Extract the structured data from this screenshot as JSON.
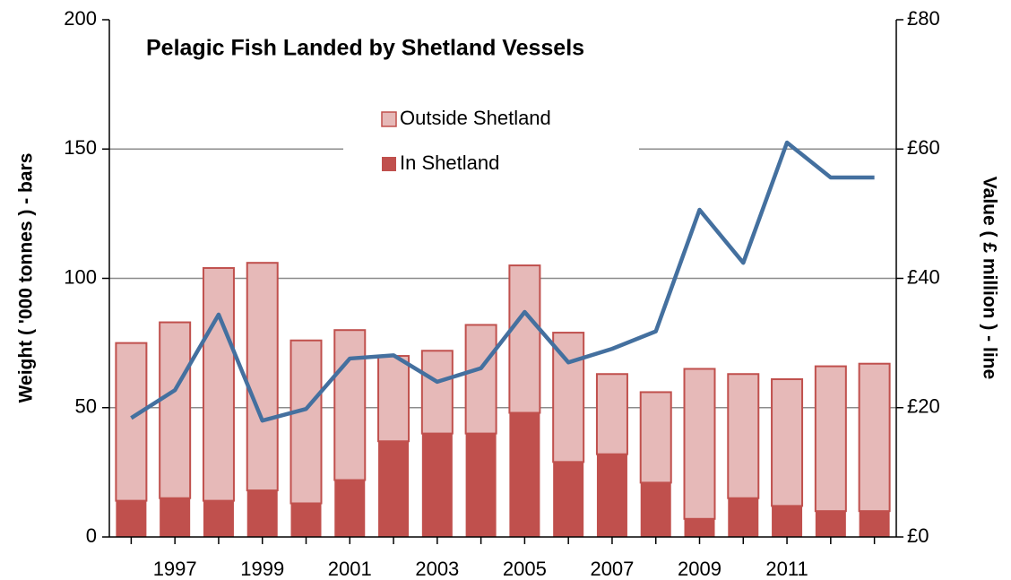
{
  "chart_data": {
    "type": "bar",
    "stacked": true,
    "title": "Pelagic Fish Landed by Shetland Vessels",
    "y_label": "Weight ( '000 tonnes ) - bars",
    "y2_label": "Value ( £ million ) - line",
    "categories": [
      null,
      "1997",
      null,
      "1999",
      null,
      "2001",
      null,
      "2003",
      null,
      "2005",
      null,
      "2007",
      null,
      "2009",
      null,
      "2011",
      null,
      null
    ],
    "series": [
      {
        "name": "In Shetland",
        "type": "bar",
        "color": "#c0504d",
        "values": [
          14,
          15,
          14,
          18,
          13,
          22,
          37,
          40,
          40,
          48,
          29,
          32,
          21,
          7,
          15,
          12,
          10,
          10
        ]
      },
      {
        "name": "Outside Shetland",
        "type": "bar",
        "color": "#e6b9b8",
        "edge_color": "#c0504d",
        "values": [
          61,
          68,
          90,
          88,
          63,
          58,
          33,
          32,
          42,
          57,
          50,
          31,
          35,
          58,
          48,
          49,
          56,
          57
        ]
      },
      {
        "type": "line",
        "axis": "y2",
        "color": "#44709f",
        "values": [
          18.4,
          22.7,
          34.4,
          18.0,
          19.8,
          27.6,
          28.1,
          24.0,
          26.1,
          34.8,
          27.0,
          29.1,
          31.8,
          50.6,
          42.4,
          61.0,
          55.6,
          55.6
        ]
      }
    ],
    "ylim": [
      0,
      200
    ],
    "yticks": [
      0,
      50,
      100,
      150,
      200
    ],
    "y2lim": [
      0,
      80
    ],
    "y2ticks": [
      {
        "value": 0,
        "label": "£0"
      },
      {
        "value": 20,
        "label": "£20"
      },
      {
        "value": 40,
        "label": "£40"
      },
      {
        "value": 60,
        "label": "£60"
      },
      {
        "value": 80,
        "label": "£80"
      }
    ],
    "grid": true
  }
}
